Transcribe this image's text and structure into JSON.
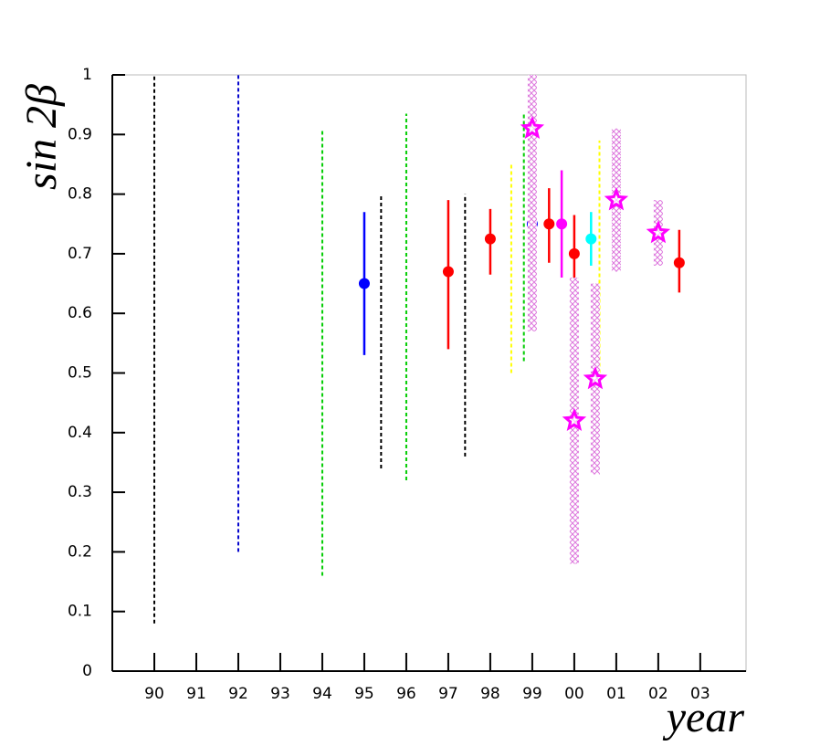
{
  "chart_data": {
    "type": "scatter",
    "y_label": "sin 2β",
    "x_label": "year",
    "xlim": [
      1989,
      2004.09
    ],
    "ylim": [
      0,
      1
    ],
    "xticks": [
      {
        "value": 1990,
        "label": "90"
      },
      {
        "value": 1991,
        "label": "91"
      },
      {
        "value": 1992,
        "label": "92"
      },
      {
        "value": 1993,
        "label": "93"
      },
      {
        "value": 1994,
        "label": "94"
      },
      {
        "value": 1995,
        "label": "95"
      },
      {
        "value": 1996,
        "label": "96"
      },
      {
        "value": 1997,
        "label": "97"
      },
      {
        "value": 1998,
        "label": "98"
      },
      {
        "value": 1999,
        "label": "99"
      },
      {
        "value": 2000,
        "label": "00"
      },
      {
        "value": 2001,
        "label": "01"
      },
      {
        "value": 2002,
        "label": "02"
      },
      {
        "value": 2003,
        "label": "03"
      }
    ],
    "yticks": [
      0,
      0.1,
      0.2,
      0.3,
      0.4,
      0.5,
      0.6,
      0.7,
      0.8,
      0.9,
      1
    ],
    "series": [
      {
        "style": "dashed-range",
        "x": [
          1990,
          1992,
          1994,
          1995.4,
          1996,
          1997.4,
          1998.5,
          1998.8,
          2000.6
        ],
        "low": [
          0.08,
          0.2,
          0.16,
          0.34,
          0.32,
          0.36,
          0.5,
          0.52,
          0.5
        ],
        "high": [
          1.0,
          1.0,
          0.91,
          0.8,
          0.935,
          0.8,
          0.85,
          0.935,
          0.89
        ],
        "colors": [
          "#000000",
          "#0000cc",
          "#00cc00",
          "#000000",
          "#00cc00",
          "#000000",
          "#ffff00",
          "#00cc00",
          "#ffff00"
        ]
      },
      {
        "style": "circle",
        "x": [
          1995,
          1997,
          1998,
          1999,
          1999.4,
          1999.7,
          2000,
          2000.4,
          2002.5
        ],
        "values": [
          0.65,
          0.67,
          0.725,
          0.75,
          0.75,
          0.75,
          0.7,
          0.725,
          0.685
        ],
        "low": [
          0.53,
          0.54,
          0.665,
          0.66,
          0.685,
          0.66,
          0.635,
          0.68,
          0.635
        ],
        "high": [
          0.77,
          0.79,
          0.775,
          0.84,
          0.81,
          0.84,
          0.765,
          0.77,
          0.74
        ],
        "colors": [
          "#0000ff",
          "#ff0000",
          "#ff0000",
          "#0000ff",
          "#ff0000",
          "#ff00ff",
          "#ff0000",
          "#00ffff",
          "#ff0000"
        ]
      },
      {
        "style": "star",
        "x": [
          1999,
          2000,
          2000.5,
          2001,
          2002
        ],
        "values": [
          0.91,
          0.42,
          0.49,
          0.79,
          0.735
        ],
        "low": [
          0.57,
          0.18,
          0.33,
          0.67,
          0.68
        ],
        "high": [
          1.0,
          0.66,
          0.65,
          0.91,
          0.79
        ],
        "color": "#ff00ff"
      }
    ]
  }
}
